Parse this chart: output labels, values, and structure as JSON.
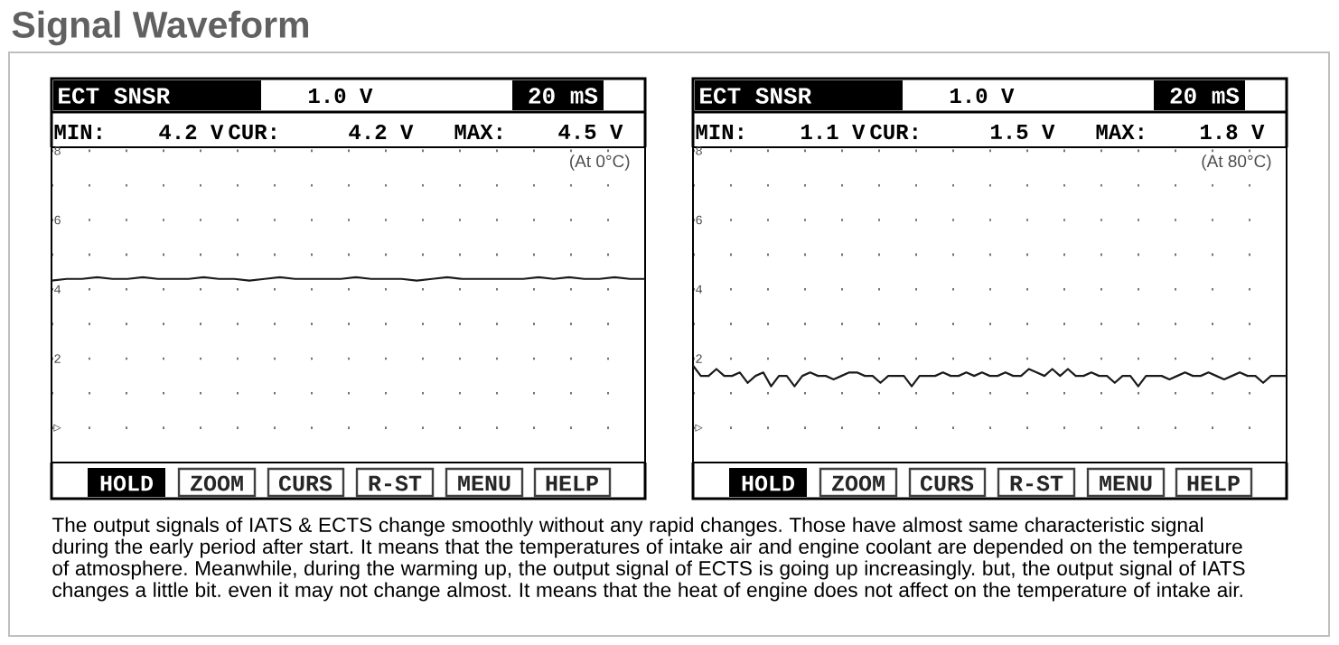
{
  "chart_data": [
    {
      "type": "line",
      "title": "Signal Waveform",
      "categories": [
        null,
        null,
        null,
        null,
        null,
        null,
        null,
        null,
        null,
        null,
        null,
        null,
        null,
        null,
        null,
        null,
        null,
        null,
        null,
        null,
        null,
        null,
        null,
        null,
        null,
        null,
        null,
        null,
        null,
        null,
        null,
        null,
        null,
        null,
        null,
        null,
        null,
        null,
        null,
        null
      ],
      "series": [
        {
          "color": "#1a1a1a",
          "values": [
            4.25,
            4.3,
            4.3,
            4.35,
            4.3,
            4.3,
            4.35,
            4.3,
            4.3,
            4.3,
            4.35,
            4.3,
            4.3,
            4.25,
            4.3,
            4.35,
            4.3,
            4.3,
            4.3,
            4.3,
            4.35,
            4.3,
            4.3,
            4.3,
            4.25,
            4.3,
            4.35,
            4.3,
            4.3,
            4.3,
            4.3,
            4.3,
            4.35,
            4.3,
            4.35,
            4.3,
            4.3,
            4.35,
            4.3,
            4.3
          ]
        }
      ],
      "ylim": [
        -1,
        8.1
      ],
      "yticks": [
        {
          "value": 0,
          "label": "▷"
        },
        {
          "value": 1,
          "label": null
        },
        2,
        {
          "value": 3,
          "label": null
        },
        4,
        {
          "value": 5,
          "label": null
        },
        6,
        {
          "value": 7,
          "label": null
        },
        8
      ],
      "grid": "y",
      "tick_labels": "y",
      "annotations": [
        "ECT SNSR",
        "1.0 V",
        "20 mS",
        "MIN:",
        "4.2 V",
        "CUR:",
        "4.2 V",
        "MAX:",
        "4.5 V",
        "(At 0°C)",
        "HOLD",
        "ZOOM",
        "CURS",
        "R-ST",
        "MENU",
        "HELP"
      ]
    },
    {
      "type": "line",
      "categories": [
        null,
        null,
        null,
        null,
        null,
        null,
        null,
        null,
        null,
        null,
        null,
        null,
        null,
        null,
        null,
        null,
        null,
        null,
        null,
        null,
        null,
        null,
        null,
        null,
        null,
        null,
        null,
        null,
        null,
        null,
        null,
        null,
        null,
        null,
        null,
        null,
        null,
        null,
        null,
        null,
        null,
        null,
        null,
        null,
        null,
        null,
        null,
        null,
        null,
        null,
        null,
        null,
        null,
        null,
        null,
        null,
        null,
        null,
        null,
        null,
        null,
        null,
        null,
        null,
        null,
        null,
        null,
        null,
        null,
        null,
        null,
        null,
        null,
        null,
        null,
        null,
        null
      ],
      "series": [
        {
          "color": "#1a1a1a",
          "values": [
            1.8,
            1.5,
            1.5,
            1.7,
            1.5,
            1.5,
            1.6,
            1.3,
            1.5,
            1.6,
            1.2,
            1.5,
            1.5,
            1.2,
            1.5,
            1.6,
            1.5,
            1.5,
            1.4,
            1.5,
            1.6,
            1.6,
            1.5,
            1.5,
            1.3,
            1.5,
            1.5,
            1.5,
            1.2,
            1.5,
            1.5,
            1.5,
            1.6,
            1.5,
            1.5,
            1.6,
            1.5,
            1.6,
            1.5,
            1.5,
            1.6,
            1.5,
            1.5,
            1.7,
            1.6,
            1.5,
            1.7,
            1.5,
            1.7,
            1.5,
            1.5,
            1.6,
            1.5,
            1.5,
            1.3,
            1.5,
            1.5,
            1.2,
            1.5,
            1.5,
            1.5,
            1.4,
            1.5,
            1.6,
            1.5,
            1.5,
            1.6,
            1.5,
            1.4,
            1.5,
            1.6,
            1.5,
            1.5,
            1.3,
            1.5,
            1.5,
            1.5
          ]
        }
      ],
      "ylim": [
        -1,
        8.1
      ],
      "yticks": [
        {
          "value": 0,
          "label": "▷"
        },
        {
          "value": 1,
          "label": null
        },
        2,
        {
          "value": 3,
          "label": null
        },
        4,
        {
          "value": 5,
          "label": null
        },
        6,
        {
          "value": 7,
          "label": null
        },
        8
      ],
      "grid": "y",
      "tick_labels": "y",
      "annotations": [
        "ECT SNSR",
        "1.0 V",
        "20 mS",
        "MIN:",
        "1.1 V",
        "CUR:",
        "1.5 V",
        "MAX:",
        "1.8 V",
        "(At 80°C)",
        "HOLD",
        "ZOOM",
        "CURS",
        "R-ST",
        "MENU",
        "HELP",
        "The output signals of IATS & ECTS change smoothly without any rapid changes. Those have almost same characteristic signal during the early period after start. It means that the temperatures of intake air and engine coolant are depended on the temperature of atmosphere. Meanwhile, during the warming up, the output signal of ECTS is going up increasingly. but, the output signal of IATS changes a little bit. even it may not change almost. It means that the heat of engine does not affect on the temperature of intake air."
      ]
    }
  ]
}
